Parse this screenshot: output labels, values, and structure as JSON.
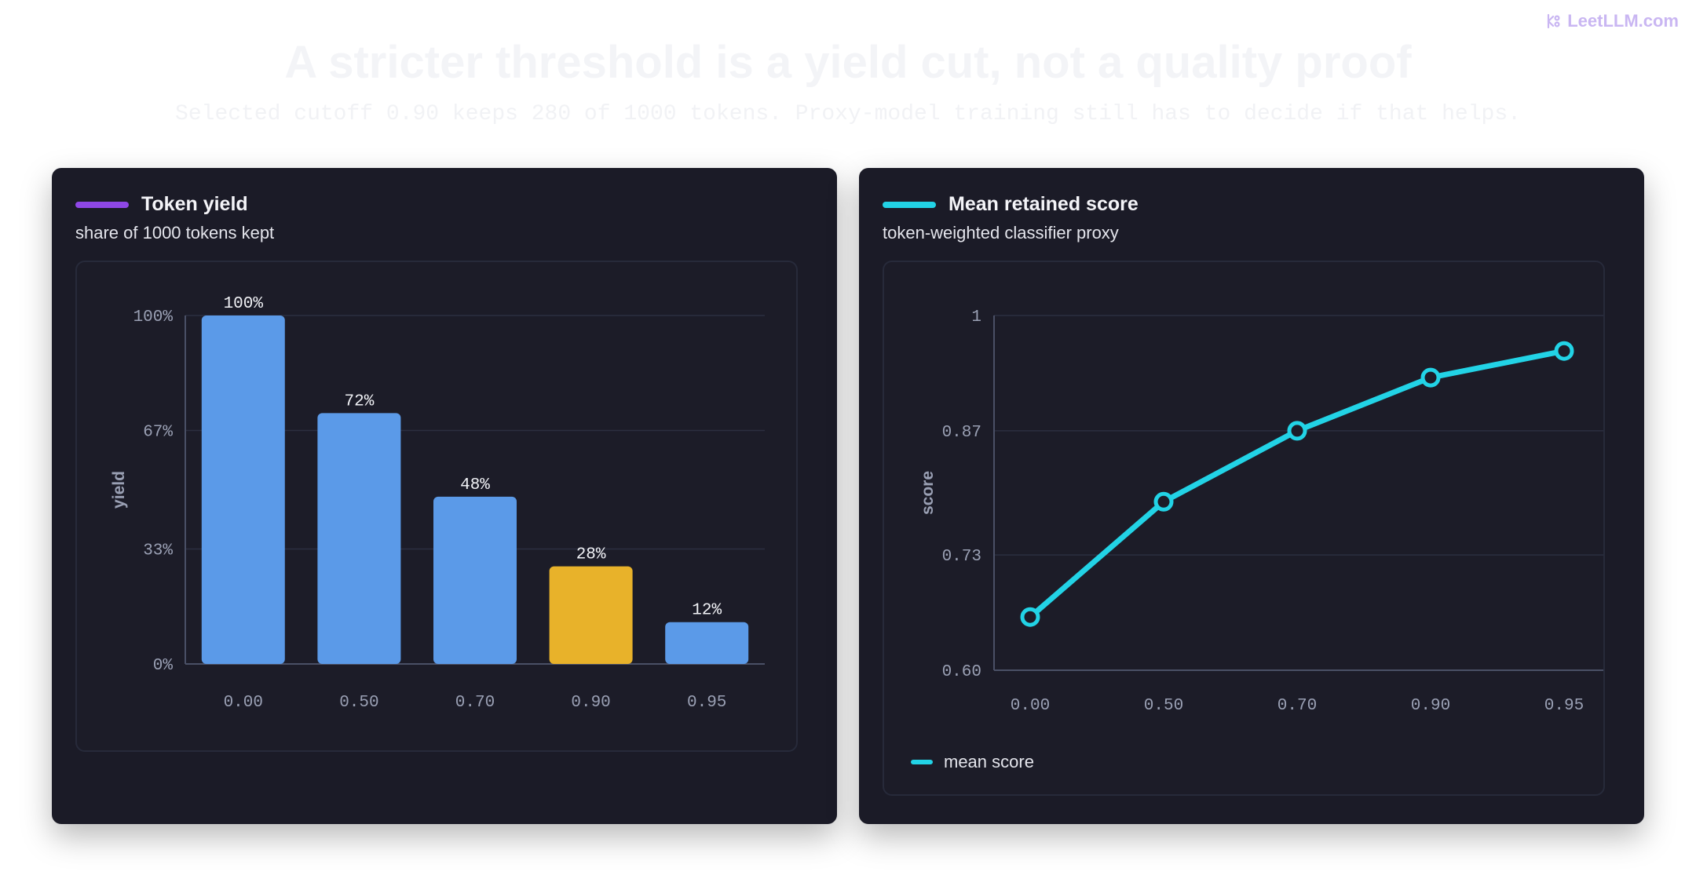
{
  "brand": {
    "icon": "leetllm-logo-icon",
    "name": "LeetLLM.com"
  },
  "headline": "A stricter threshold is a yield cut, not a quality proof",
  "subline": "Selected cutoff 0.90 keeps 280 of 1000 tokens. Proxy-model training still has to decide if that helps.",
  "colors": {
    "bar": "#5b9ae8",
    "highlight": "#e8b22a",
    "line": "#22d3e6",
    "yield_swatch": "#8f47e6",
    "score_swatch": "#22d3e6",
    "grid": "#2b2f40",
    "axis": "#4a5066"
  },
  "panels": {
    "yield": {
      "title": "Token yield",
      "subtitle": "share of 1000 tokens kept"
    },
    "score": {
      "title": "Mean retained score",
      "subtitle": "token-weighted classifier proxy",
      "legend": "mean score"
    }
  },
  "chart_data": [
    {
      "type": "bar",
      "title": "Token yield",
      "subtitle": "share of 1000 tokens kept",
      "categories": [
        "0.00",
        "0.50",
        "0.70",
        "0.90",
        "0.95"
      ],
      "values": [
        100,
        72,
        48,
        28,
        12
      ],
      "value_labels": [
        "100%",
        "72%",
        "48%",
        "28%",
        "12%"
      ],
      "highlight_category": "0.90",
      "ylabel": "yield",
      "ylim": [
        0,
        100
      ],
      "yticks": [
        0,
        33,
        67,
        100
      ],
      "ytick_labels": [
        "0%",
        "33%",
        "67%",
        "100%"
      ],
      "grid": true
    },
    {
      "type": "line",
      "title": "Mean retained score",
      "subtitle": "token-weighted classifier proxy",
      "x": [
        "0.00",
        "0.50",
        "0.70",
        "0.90",
        "0.95"
      ],
      "series": [
        {
          "name": "mean score",
          "values": [
            0.66,
            0.79,
            0.87,
            0.93,
            0.96
          ]
        }
      ],
      "ylabel": "score",
      "ylim": [
        0.6,
        1.0
      ],
      "yticks": [
        0.6,
        0.73,
        0.87,
        1.0
      ],
      "ytick_labels": [
        "0.60",
        "0.73",
        "0.87",
        "1"
      ],
      "grid": true,
      "legend": "bottom-left"
    }
  ]
}
